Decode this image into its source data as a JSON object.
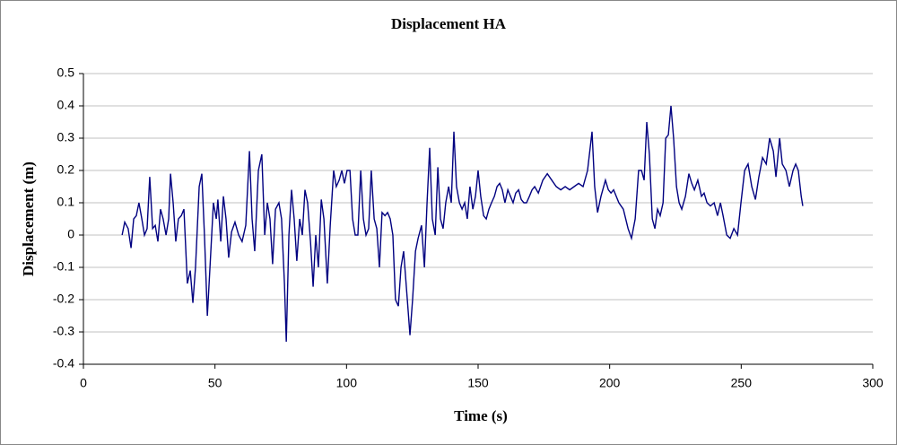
{
  "chart_data": {
    "type": "line",
    "title": "Displacement HA",
    "x_label": "Time (s)",
    "y_label": "Displacement (m)",
    "xlim": [
      0,
      300
    ],
    "xticks": [
      0,
      50,
      100,
      150,
      200,
      250,
      300
    ],
    "ylim": [
      -0.4,
      0.5
    ],
    "yticks": [
      -0.4,
      -0.3,
      -0.2,
      -0.1,
      0,
      0.1,
      0.2,
      0.3,
      0.4,
      0.5
    ],
    "grid": true,
    "x": [
      14.7,
      15.7,
      17.0,
      18.1,
      19.1,
      20.1,
      21.1,
      22.2,
      23.2,
      24.2,
      25.2,
      26.3,
      27.3,
      28.3,
      29.3,
      30.3,
      31.4,
      32.4,
      33.1,
      34.1,
      35.1,
      36.1,
      37.2,
      38.2,
      39.5,
      40.6,
      41.6,
      42.6,
      44.0,
      45.0,
      46.0,
      47.1,
      48.1,
      49.4,
      50.5,
      51.1,
      52.2,
      53.2,
      54.2,
      55.2,
      56.3,
      57.6,
      59.0,
      60.3,
      61.7,
      63.1,
      64.1,
      65.1,
      66.5,
      67.8,
      68.9,
      69.9,
      70.9,
      71.9,
      73.0,
      74.3,
      75.3,
      76.4,
      77.1,
      78.1,
      79.1,
      80.1,
      81.1,
      82.2,
      83.2,
      84.2,
      85.2,
      86.3,
      87.3,
      88.3,
      89.3,
      90.4,
      91.4,
      92.7,
      93.8,
      95.1,
      96.1,
      97.2,
      98.2,
      99.2,
      100.2,
      101.3,
      102.3,
      103.3,
      104.3,
      105.4,
      106.4,
      107.4,
      108.4,
      109.4,
      110.5,
      111.5,
      112.5,
      113.5,
      114.6,
      115.6,
      116.6,
      117.6,
      118.6,
      119.7,
      120.7,
      121.7,
      123.1,
      124.1,
      125.1,
      126.2,
      127.2,
      128.5,
      129.6,
      130.6,
      131.6,
      132.6,
      133.7,
      134.7,
      135.7,
      136.7,
      137.7,
      138.8,
      139.8,
      140.8,
      141.8,
      142.9,
      143.9,
      144.9,
      145.9,
      146.9,
      148.0,
      149.0,
      150.0,
      151.0,
      152.1,
      153.1,
      154.1,
      155.1,
      156.2,
      157.2,
      158.2,
      159.2,
      160.2,
      161.3,
      162.3,
      163.3,
      164.3,
      165.4,
      166.4,
      167.4,
      168.4,
      169.5,
      170.5,
      171.5,
      172.9,
      174.6,
      176.3,
      178.0,
      179.7,
      181.4,
      183.1,
      184.8,
      186.5,
      188.2,
      189.9,
      191.6,
      193.3,
      194.3,
      195.4,
      196.7,
      198.4,
      199.5,
      200.5,
      201.5,
      203.5,
      205.2,
      207.0,
      208.3,
      209.7,
      211.0,
      212.1,
      213.1,
      214.1,
      215.1,
      216.2,
      217.2,
      218.2,
      219.2,
      220.3,
      221.3,
      222.3,
      223.3,
      224.3,
      225.4,
      226.4,
      227.4,
      228.8,
      230.1,
      231.2,
      232.2,
      233.5,
      234.9,
      235.9,
      237.0,
      238.3,
      239.7,
      241.0,
      242.1,
      243.1,
      244.5,
      245.8,
      247.2,
      248.6,
      249.9,
      251.3,
      252.6,
      254.0,
      255.4,
      256.7,
      258.1,
      259.5,
      260.8,
      262.2,
      263.2,
      264.6,
      265.6,
      267.0,
      268.3,
      269.7,
      270.7,
      271.7,
      272.8,
      273.4
    ],
    "series": [
      {
        "color": "#000080",
        "values": [
          0,
          0.04,
          0.02,
          -0.04,
          0.05,
          0.06,
          0.1,
          0.05,
          0.0,
          0.02,
          0.18,
          0.02,
          0.03,
          -0.02,
          0.08,
          0.05,
          0.0,
          0.05,
          0.19,
          0.1,
          -0.02,
          0.05,
          0.06,
          0.08,
          -0.15,
          -0.11,
          -0.21,
          -0.1,
          0.15,
          0.19,
          0.0,
          -0.25,
          -0.1,
          0.1,
          0.05,
          0.11,
          -0.02,
          0.12,
          0.05,
          -0.07,
          0.01,
          0.04,
          0.0,
          -0.02,
          0.03,
          0.26,
          0.05,
          -0.05,
          0.2,
          0.25,
          0.0,
          0.1,
          0.05,
          -0.09,
          0.08,
          0.1,
          0.05,
          -0.15,
          -0.33,
          0.0,
          0.14,
          0.05,
          -0.08,
          0.05,
          0.0,
          0.14,
          0.1,
          -0.02,
          -0.16,
          0.0,
          -0.1,
          0.11,
          0.05,
          -0.15,
          0.03,
          0.2,
          0.15,
          0.17,
          0.2,
          0.16,
          0.2,
          0.2,
          0.05,
          0.0,
          0.0,
          0.2,
          0.05,
          0.0,
          0.02,
          0.2,
          0.05,
          0.02,
          -0.1,
          0.07,
          0.06,
          0.07,
          0.05,
          0.0,
          -0.2,
          -0.22,
          -0.1,
          -0.05,
          -0.2,
          -0.31,
          -0.2,
          -0.05,
          -0.01,
          0.03,
          -0.1,
          0.1,
          0.27,
          0.05,
          0.0,
          0.21,
          0.05,
          0.02,
          0.1,
          0.15,
          0.1,
          0.32,
          0.15,
          0.1,
          0.08,
          0.1,
          0.05,
          0.15,
          0.08,
          0.12,
          0.2,
          0.12,
          0.06,
          0.05,
          0.08,
          0.1,
          0.12,
          0.15,
          0.16,
          0.14,
          0.1,
          0.14,
          0.12,
          0.1,
          0.13,
          0.14,
          0.11,
          0.1,
          0.1,
          0.12,
          0.14,
          0.15,
          0.13,
          0.17,
          0.19,
          0.17,
          0.15,
          0.14,
          0.15,
          0.14,
          0.15,
          0.16,
          0.15,
          0.2,
          0.32,
          0.15,
          0.07,
          0.12,
          0.17,
          0.14,
          0.13,
          0.14,
          0.1,
          0.08,
          0.02,
          -0.01,
          0.05,
          0.2,
          0.2,
          0.17,
          0.35,
          0.25,
          0.05,
          0.02,
          0.08,
          0.06,
          0.1,
          0.3,
          0.31,
          0.4,
          0.3,
          0.15,
          0.1,
          0.08,
          0.12,
          0.19,
          0.16,
          0.14,
          0.17,
          0.12,
          0.13,
          0.1,
          0.09,
          0.1,
          0.06,
          0.1,
          0.06,
          0.0,
          -0.01,
          0.02,
          0.0,
          0.1,
          0.2,
          0.22,
          0.15,
          0.11,
          0.18,
          0.24,
          0.22,
          0.3,
          0.26,
          0.18,
          0.3,
          0.22,
          0.2,
          0.15,
          0.2,
          0.22,
          0.2,
          0.12,
          0.09
        ]
      }
    ]
  }
}
